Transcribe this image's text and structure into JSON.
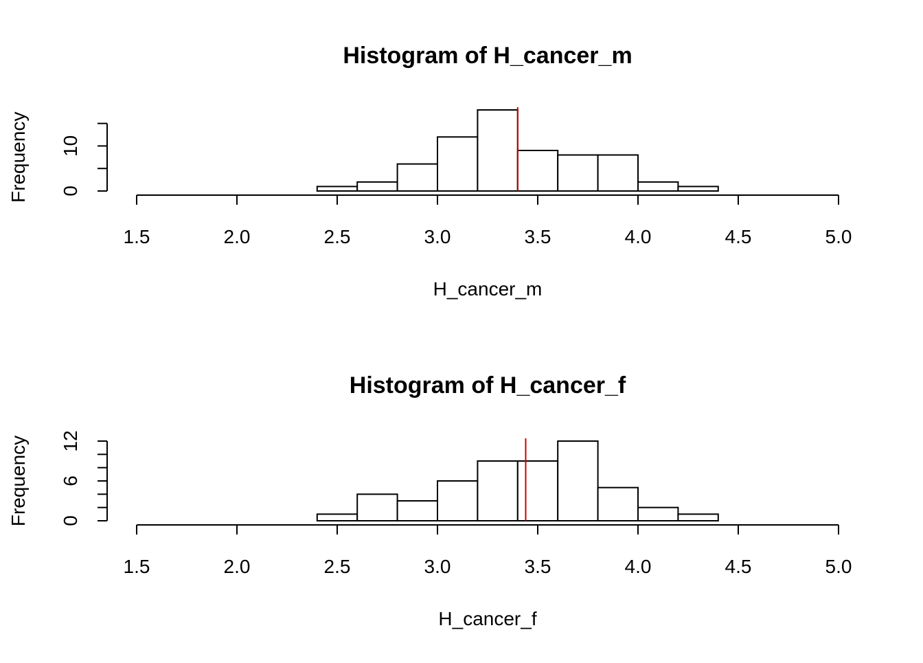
{
  "chart_data": [
    {
      "type": "bar",
      "title": "Histogram of H_cancer_m",
      "xlabel": "H_cancer_m",
      "ylabel": "Frequency",
      "xlim": [
        1.5,
        5.0
      ],
      "ylim": [
        0,
        18
      ],
      "x_ticks": [
        "1.5",
        "2.0",
        "2.5",
        "3.0",
        "3.5",
        "4.0",
        "4.5",
        "5.0"
      ],
      "y_ticks": [
        0,
        5,
        10,
        15
      ],
      "y_tick_labels": [
        "0",
        "",
        "10",
        ""
      ],
      "bin_edges": [
        2.4,
        2.6,
        2.8,
        3.0,
        3.2,
        3.4,
        3.6,
        3.8,
        4.0,
        4.2,
        4.4
      ],
      "values": [
        1,
        2,
        6,
        12,
        18,
        9,
        8,
        8,
        2,
        1
      ],
      "mean_line": {
        "x": 3.4,
        "color": "#cc0000"
      },
      "grid": false
    },
    {
      "type": "bar",
      "title": "Histogram of H_cancer_f",
      "xlabel": "H_cancer_f",
      "ylabel": "Frequency",
      "xlim": [
        1.5,
        5.0
      ],
      "ylim": [
        0,
        12
      ],
      "x_ticks": [
        "1.5",
        "2.0",
        "2.5",
        "3.0",
        "3.5",
        "4.0",
        "4.5",
        "5.0"
      ],
      "y_ticks": [
        0,
        2,
        4,
        6,
        8,
        10,
        12
      ],
      "y_tick_labels": [
        "0",
        "",
        "",
        "6",
        "",
        "",
        "12"
      ],
      "bin_edges": [
        2.4,
        2.6,
        2.8,
        3.0,
        3.2,
        3.4,
        3.6,
        3.8,
        4.0,
        4.2,
        4.4
      ],
      "values": [
        1,
        4,
        3,
        6,
        9,
        9,
        12,
        5,
        2,
        1
      ],
      "mean_line": {
        "x": 3.44,
        "color": "#cc0000"
      },
      "grid": false
    }
  ]
}
